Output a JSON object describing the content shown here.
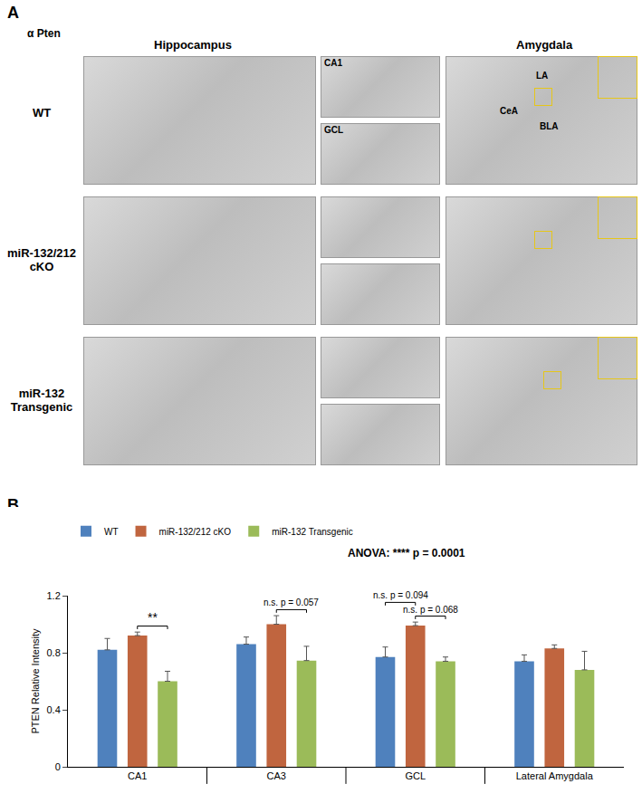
{
  "panel_a": {
    "label": "A",
    "antibody": "α Pten",
    "columns": [
      "Hippocampus",
      "Amygdala"
    ],
    "rows": [
      "WT",
      "miR-132/212 cKO",
      "miR-132 Transgenic"
    ],
    "insets": [
      "CA1",
      "GCL"
    ],
    "regions": [
      "CeA",
      "LA",
      "BLA"
    ]
  },
  "panel_b": {
    "label": "B"
  },
  "chart_data": {
    "type": "bar",
    "categories": [
      "CA1",
      "CA3",
      "GCL",
      "Lateral Amygdala"
    ],
    "series": [
      {
        "name": "WT",
        "color": "#4f81bd",
        "values": [
          0.82,
          0.86,
          0.77,
          0.74
        ],
        "errors": [
          0.08,
          0.05,
          0.07,
          0.045
        ]
      },
      {
        "name": "miR-132/212 cKO",
        "color": "#c0653f",
        "values": [
          0.92,
          1.0,
          0.99,
          0.83
        ],
        "errors": [
          0.025,
          0.06,
          0.025,
          0.025
        ]
      },
      {
        "name": "miR-132 Transgenic",
        "color": "#9bbb59",
        "values": [
          0.6,
          0.745,
          0.74,
          0.68
        ],
        "errors": [
          0.07,
          0.1,
          0.03,
          0.13
        ]
      }
    ],
    "y_label": "PTEN Relative Intensity",
    "ylim": [
      0,
      1.2
    ],
    "yticks": [
      0,
      0.4,
      0.8,
      1.2
    ],
    "grid": false,
    "legend": "top left",
    "annotations": [
      {
        "text": "ANOVA: **** p = 0.0001"
      }
    ],
    "significance": [
      {
        "category": "CA1",
        "from": "miR-132/212 cKO",
        "to": "miR-132 Transgenic",
        "text": "**"
      },
      {
        "category": "CA3",
        "from": "miR-132/212 cKO",
        "to": "miR-132 Transgenic",
        "text": "n.s. p = 0.057"
      },
      {
        "category": "GCL",
        "from": "miR-132/212 cKO",
        "to": "miR-132 Transgenic",
        "text": "n.s. p = 0.068"
      },
      {
        "category": "GCL",
        "from": "WT",
        "to": "miR-132/212 cKO",
        "text": "n.s. p = 0.094"
      }
    ]
  }
}
